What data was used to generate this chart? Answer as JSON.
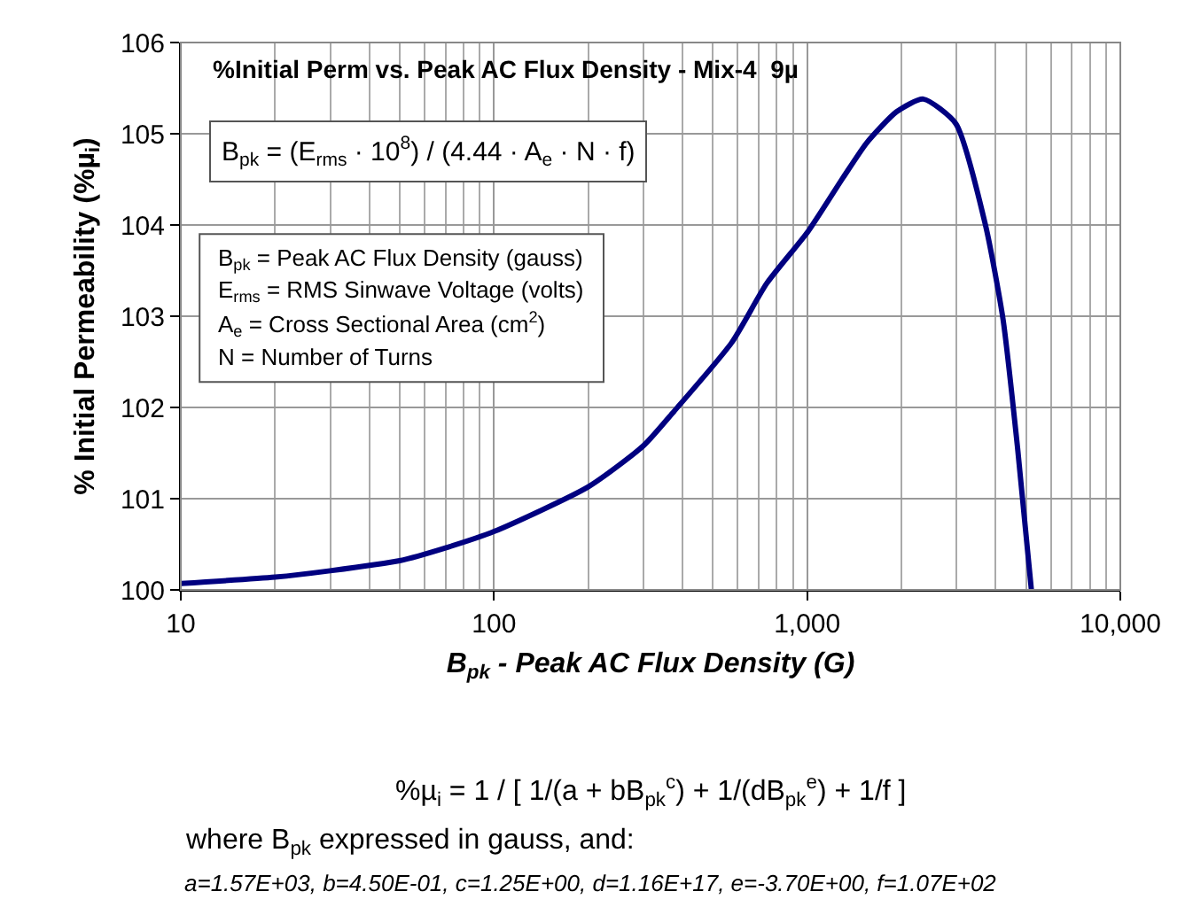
{
  "chart_data": {
    "type": "line",
    "title": "%Initial Perm vs. Peak AC Flux Density - Mix-4  9µ",
    "xlabel": "B$_{pk}$ - Peak AC Flux Density (G)",
    "ylabel": "% Initial Permeability (%µ$_{i}$)",
    "x": [
      10,
      20,
      30,
      50,
      70,
      100,
      200,
      300,
      372,
      574,
      743,
      1007,
      1303,
      1549,
      1928,
      2349,
      2985,
      3710,
      4220,
      4700,
      5200
    ],
    "series": [
      {
        "color": "#000080",
        "values": [
          100.07,
          100.14,
          100.21,
          100.32,
          100.46,
          100.64,
          101.13,
          101.58,
          101.94,
          102.71,
          103.36,
          103.93,
          104.52,
          104.9,
          105.24,
          105.38,
          105.11,
          104.0,
          102.97,
          101.55,
          100.0
        ]
      }
    ],
    "log": "x",
    "xlim": [
      10,
      10000
    ],
    "ylim": [
      100,
      106
    ],
    "xticks": [
      10,
      100,
      {
        "value": 1000,
        "label": "1,000"
      },
      {
        "value": 10000,
        "label": "10,000"
      }
    ],
    "yticks": [
      100,
      101,
      102,
      103,
      104,
      105,
      106
    ],
    "grid": true,
    "marker": "none",
    "line_style": "solid",
    "annotations": [
      "B$_{pk}$ = (E$_{rms}$ · 10$^{8}$) / (4.44 · A$_{e}$ · N · f)",
      "B$_{pk}$ = Peak AC Flux Density (gauss)",
      "E$_{rms}$ = RMS Sinwave Voltage (volts)",
      "A$_{e}$ = Cross Sectional Area (cm$^{2}$)",
      "N = Number of Turns",
      "%µ$_{i}$ = 1 / [ 1/(a + bB$_{pk}$$^{c}$) + 1/(dB$_{pk}$$^{e}$) + 1/f ]",
      "where B$_{pk}$ expressed in gauss, and:",
      "a=1.57E+03, b=4.50E-01, c=1.25E+00, d=1.16E+17, e=-3.70E+00, f=1.07E+02"
    ]
  }
}
